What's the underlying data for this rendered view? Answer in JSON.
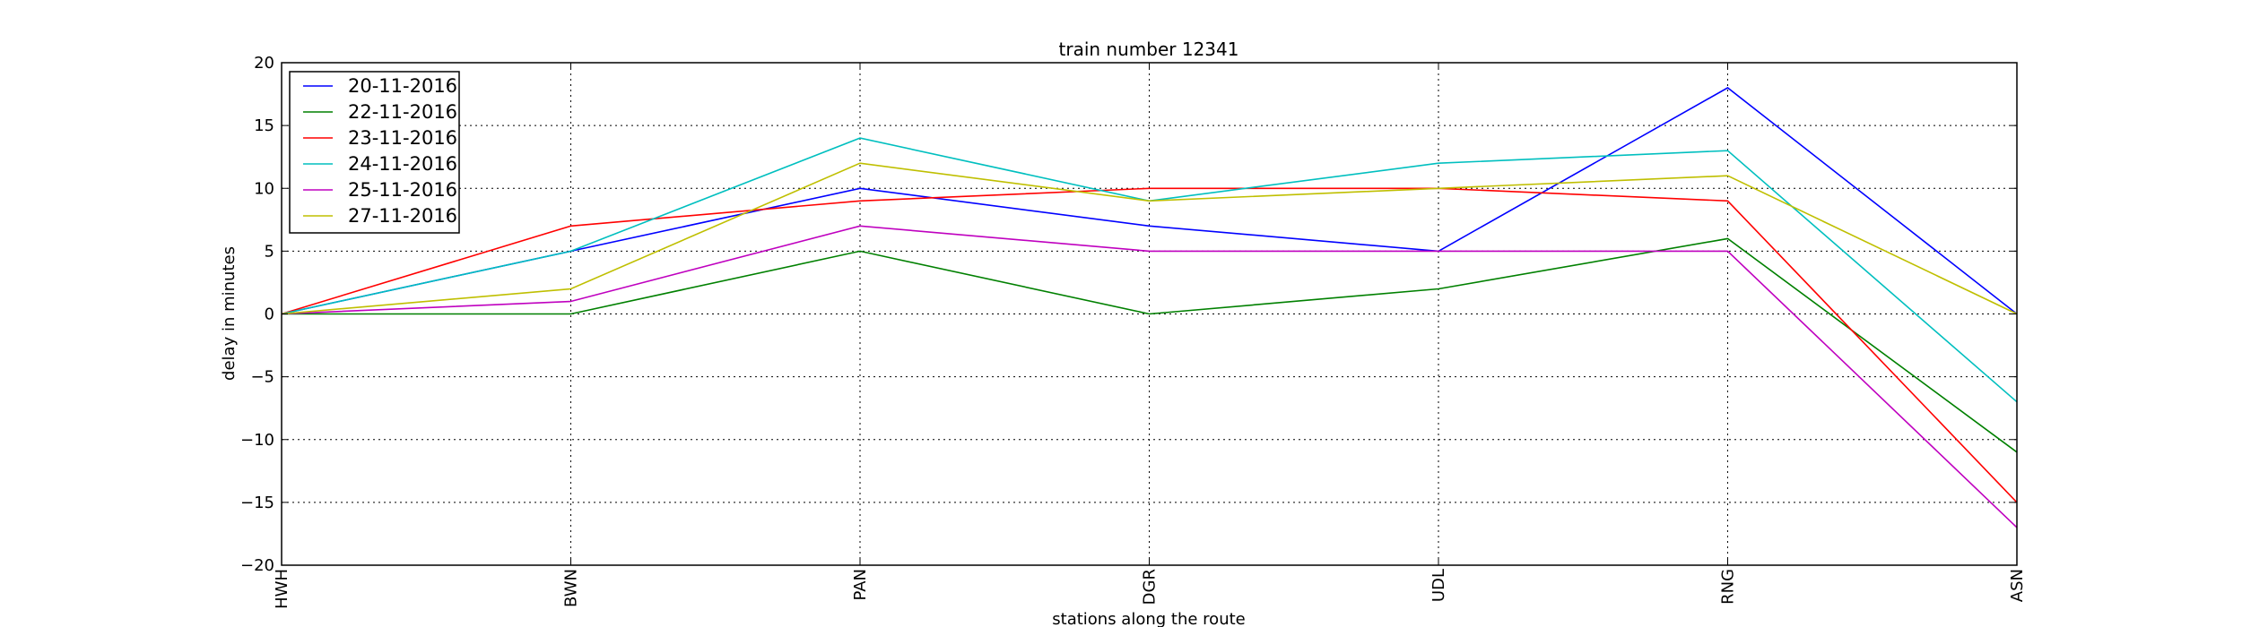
{
  "chart_data": {
    "type": "line",
    "title": "train number 12341",
    "xlabel": "stations along the route",
    "ylabel": "delay in minutes",
    "categories": [
      "HWH",
      "BWN",
      "PAN",
      "DGR",
      "UDL",
      "RNG",
      "ASN"
    ],
    "ylim": [
      -20,
      20
    ],
    "yticks": [
      -20,
      -15,
      -10,
      -5,
      0,
      5,
      10,
      15,
      20
    ],
    "ytick_labels": [
      "−20",
      "−15",
      "−10",
      "−5",
      "0",
      "5",
      "10",
      "15",
      "20"
    ],
    "grid": true,
    "legend_position": "top-left",
    "series": [
      {
        "name": "20-11-2016",
        "color": "#0000ff",
        "values": [
          0,
          5,
          10,
          7,
          5,
          18,
          0
        ]
      },
      {
        "name": "22-11-2016",
        "color": "#008000",
        "values": [
          0,
          0,
          5,
          0,
          2,
          6,
          -11
        ]
      },
      {
        "name": "23-11-2016",
        "color": "#ff0000",
        "values": [
          0,
          7,
          9,
          10,
          10,
          9,
          -15
        ]
      },
      {
        "name": "24-11-2016",
        "color": "#00bfbf",
        "values": [
          0,
          5,
          14,
          9,
          12,
          13,
          -7
        ]
      },
      {
        "name": "25-11-2016",
        "color": "#bf00bf",
        "values": [
          0,
          1,
          7,
          5,
          5,
          5,
          -17
        ]
      },
      {
        "name": "27-11-2016",
        "color": "#bfbf00",
        "values": [
          0,
          2,
          12,
          9,
          10,
          11,
          0
        ]
      }
    ]
  }
}
